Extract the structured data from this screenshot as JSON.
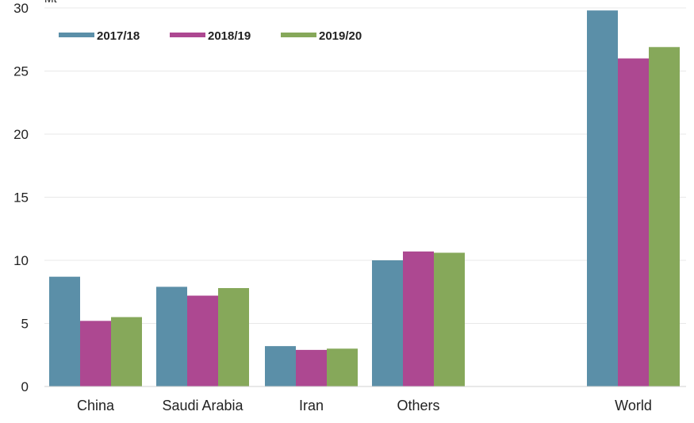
{
  "chart_data": {
    "type": "bar",
    "ylabel": "Mt",
    "categories": [
      "China",
      "Saudi Arabia",
      "Iran",
      "Others",
      "World"
    ],
    "series": [
      {
        "name": "2017/18",
        "color": "#5b8fa8",
        "values": [
          8.7,
          7.9,
          3.2,
          10.0,
          29.8
        ]
      },
      {
        "name": "2018/19",
        "color": "#ad4891",
        "values": [
          5.2,
          7.2,
          2.9,
          10.7,
          26.0
        ]
      },
      {
        "name": "2019/20",
        "color": "#86a85a",
        "values": [
          5.5,
          7.8,
          3.0,
          10.6,
          26.9
        ]
      }
    ],
    "ylim": [
      0,
      30
    ],
    "yticks": [
      0,
      5,
      10,
      15,
      20,
      25,
      30
    ],
    "grid": true,
    "legend": "top-left"
  }
}
